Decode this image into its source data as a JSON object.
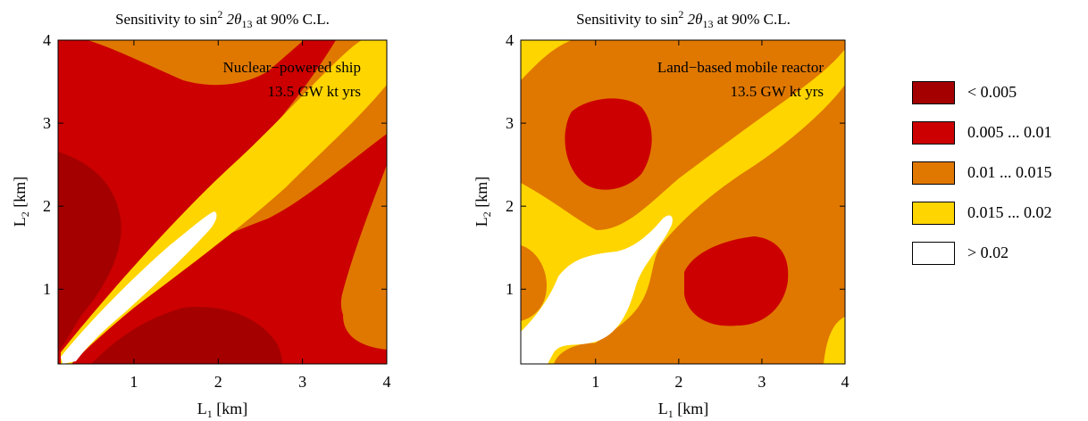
{
  "colors": {
    "lt_0_005": "#a50000",
    "c_0_005_0_01": "#cc0000",
    "c_0_01_0_015": "#e07800",
    "c_0_015_0_02": "#ffd500",
    "gt_0_02": "#ffffff"
  },
  "legend": {
    "items": [
      {
        "label": "< 0.005",
        "color": "#a50000"
      },
      {
        "label": "0.005 ... 0.01",
        "color": "#cc0000"
      },
      {
        "label": "0.01 ... 0.015",
        "color": "#e07800"
      },
      {
        "label": "0.015 ... 0.02",
        "color": "#ffd500"
      },
      {
        "label": "> 0.02",
        "color": "#ffffff"
      }
    ]
  },
  "chart_data": [
    {
      "type": "heatmap",
      "title_main": "Sensitivity to sin",
      "title_sup": "2",
      "title_mid": " 2θ",
      "title_sub": "13",
      "title_end": " at 90% C.L.",
      "xlabel_main": "L",
      "xlabel_sub": "1",
      "xlabel_unit": " [km]",
      "ylabel_main": "L",
      "ylabel_sub": "2",
      "ylabel_unit": " [km]",
      "xlim": [
        0.1,
        4.0
      ],
      "ylim": [
        0.1,
        4.0
      ],
      "xticks": [
        1,
        2,
        3,
        4
      ],
      "yticks": [
        1,
        2,
        3,
        4
      ],
      "annotation_line1": "Nuclear−powered ship",
      "annotation_line2": "13.5 GW kt yrs",
      "contour_levels": [
        0.005,
        0.01,
        0.015,
        0.02
      ],
      "region_description": "red (0.005–0.01) dominates; dark red (<0.005) lobes near L2≈1.8 at L1≈0.1 and near L1≈1.7 at L2≈0.1; white (>0.02) narrow band along diagonal L1=L2 up to ~1.9 km; yellow (0.015–0.02) band along diagonal to top-right; orange (0.01–0.015) regions at top and right edge"
    },
    {
      "type": "heatmap",
      "title_main": "Sensitivity to sin",
      "title_sup": "2",
      "title_mid": " 2θ",
      "title_sub": "13",
      "title_end": " at 90% C.L.",
      "xlabel_main": "L",
      "xlabel_sub": "1",
      "xlabel_unit": " [km]",
      "ylabel_main": "L",
      "ylabel_sub": "2",
      "ylabel_unit": " [km]",
      "xlim": [
        0.1,
        4.0
      ],
      "ylim": [
        0.1,
        4.0
      ],
      "xticks": [
        1,
        2,
        3,
        4
      ],
      "yticks": [
        1,
        2,
        3,
        4
      ],
      "annotation_line1": "Land−based mobile reactor",
      "annotation_line2": "13.5 GW kt yrs",
      "contour_levels": [
        0.005,
        0.01,
        0.015,
        0.02
      ],
      "region_description": "orange (0.01–0.015) dominates; red (0.005–0.01) islands centered near (1.2, 2.8) and (2.9, 1.2); yellow (0.015–0.02) broad band along the diagonal; white (>0.02) region near the diagonal from bottom-left to ~(1.9, 1.9)"
    }
  ]
}
